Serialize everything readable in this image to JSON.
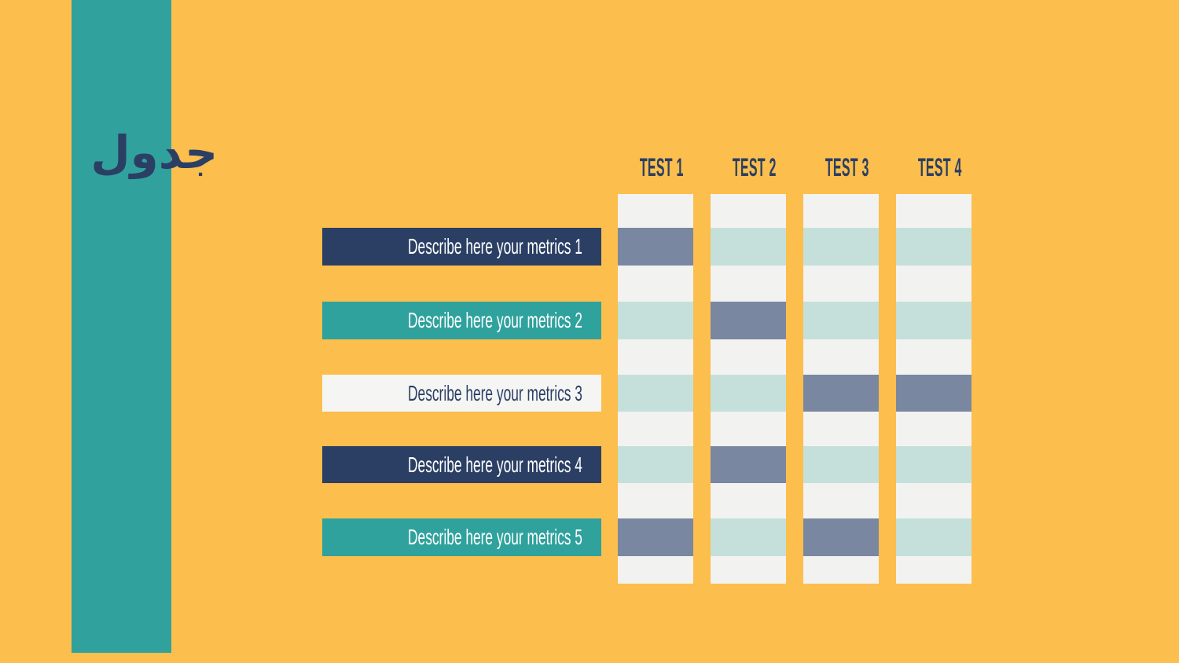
{
  "slide": {
    "title": "جدول",
    "colors": {
      "background": "#FCBE4C",
      "stripe": "#31A19E",
      "navy": "#2B3F64",
      "teal": "#2FA29D",
      "mint": "#C5E0DB",
      "slate": "#7A87A1",
      "offwhite": "#F2F2F1",
      "light_label": "#F5F5F4",
      "label_text_light": "#FFFFFF"
    }
  },
  "table": {
    "column_headers": [
      "TEST 1",
      "TEST 2",
      "TEST 3",
      "TEST 4"
    ],
    "row_labels": [
      {
        "text": "Describe here your metrics 1",
        "variant": "navy"
      },
      {
        "text": "Describe here your metrics 2",
        "variant": "teal"
      },
      {
        "text": "Describe here your metrics 3",
        "variant": "light"
      },
      {
        "text": "Describe here your metrics 4",
        "variant": "navy"
      },
      {
        "text": "Describe here your metrics 5",
        "variant": "teal"
      }
    ],
    "cell_highlights": [
      [
        "slate",
        "mint",
        "mint",
        "mint"
      ],
      [
        "mint",
        "slate",
        "mint",
        "mint"
      ],
      [
        "mint",
        "mint",
        "slate",
        "slate"
      ],
      [
        "mint",
        "slate",
        "mint",
        "mint"
      ],
      [
        "slate",
        "mint",
        "slate",
        "mint"
      ]
    ]
  }
}
